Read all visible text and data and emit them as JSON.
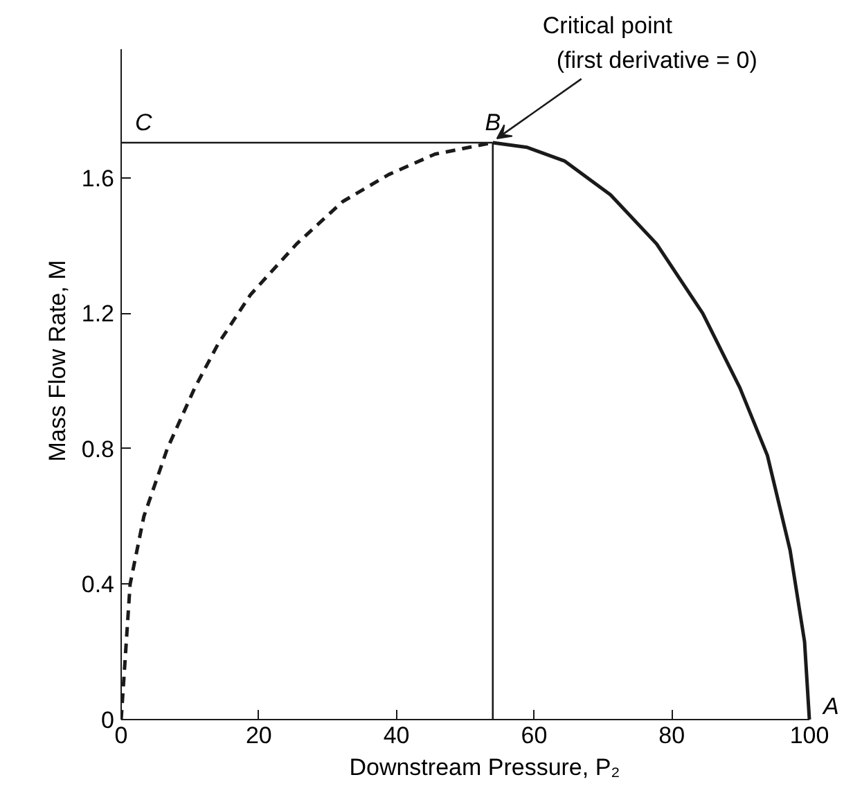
{
  "chart_data": {
    "type": "line",
    "xlabel": "Downstream Pressure, P₂",
    "ylabel": "Mass Flow Rate, M",
    "xlim": [
      0,
      100
    ],
    "ylim": [
      0,
      1.98
    ],
    "xticks": [
      0,
      20,
      40,
      60,
      80,
      100
    ],
    "yticks": [
      0,
      0.4,
      0.8,
      1.2,
      1.6
    ],
    "grid": false,
    "marker": "none",
    "series": [
      {
        "color": "#1a1a1a",
        "line_style": "dashed",
        "x": [
          0,
          1.3,
          3.3,
          6.7,
          10.7,
          14.1,
          18.8,
          25.5,
          32.2,
          38.9,
          45.6,
          54
        ],
        "values": [
          0,
          0.4,
          0.6,
          0.8,
          0.98,
          1.11,
          1.255,
          1.405,
          1.53,
          1.61,
          1.67,
          1.704
        ]
      },
      {
        "color": "#1a1a1a",
        "line_style": "solid",
        "x": [
          54,
          59,
          64.4,
          71.1,
          77.8,
          84.5,
          89.9,
          93.9,
          97.2,
          99.3,
          100
        ],
        "values": [
          1.704,
          1.69,
          1.65,
          1.55,
          1.405,
          1.2,
          0.98,
          0.78,
          0.5,
          0.23,
          0
        ]
      },
      {
        "color": "#1a1a1a",
        "line_style": "solid",
        "x": [
          0,
          54
        ],
        "values": [
          1.704,
          1.704
        ]
      },
      {
        "color": "#1a1a1a",
        "line_style": "solid",
        "x": [
          54,
          54
        ],
        "values": [
          0,
          1.704
        ]
      }
    ],
    "annotations": [
      {
        "text": "C",
        "x": 0,
        "y": 1.704
      },
      {
        "text": "B",
        "x": 54,
        "y": 1.704
      },
      {
        "text": "A",
        "x": 100,
        "y": 0
      },
      {
        "text": "Critical point\n(first derivative = 0)",
        "x": 54,
        "y": 1.704
      }
    ]
  }
}
